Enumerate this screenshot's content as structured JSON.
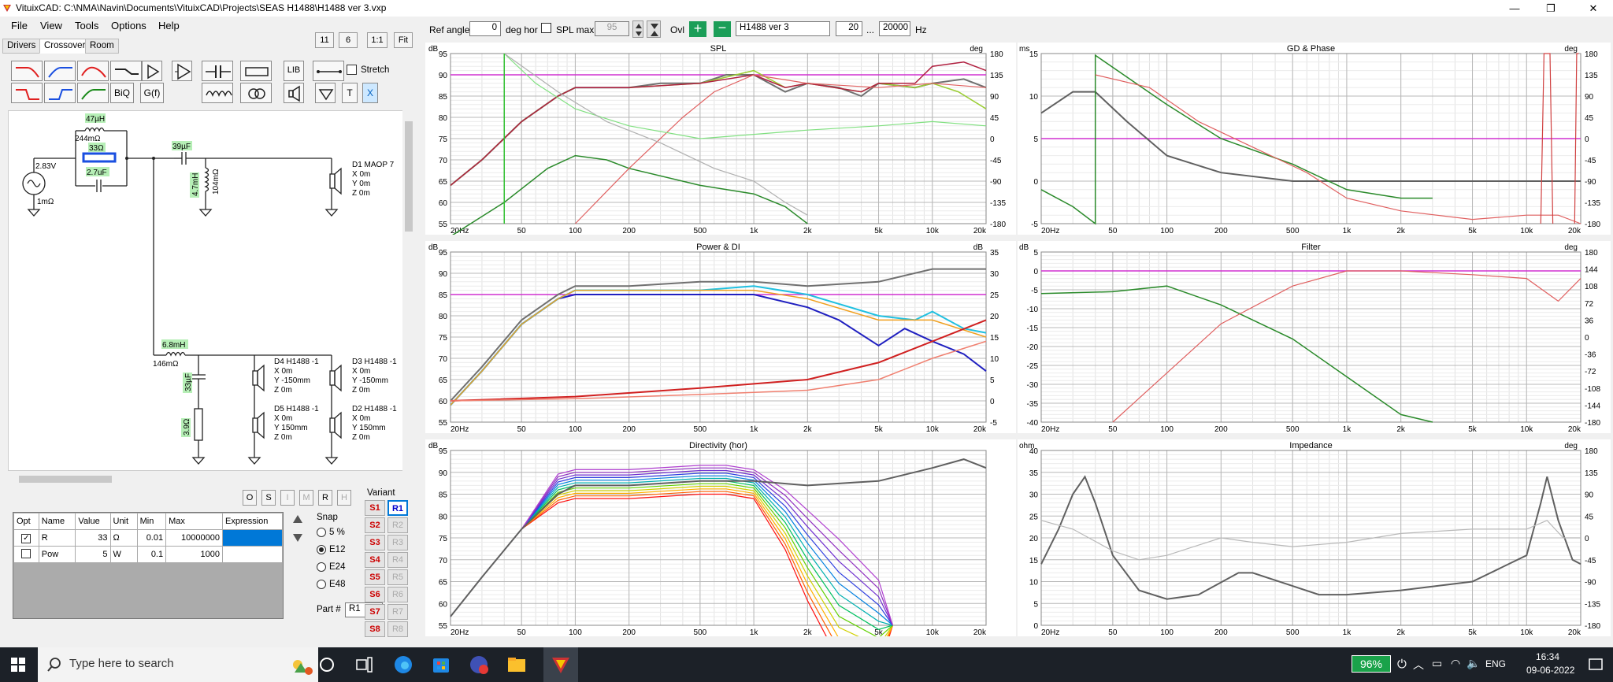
{
  "window": {
    "title": "VituixCAD: C:\\NMA\\Navin\\Documents\\VituixCAD\\Projects\\SEAS H1488\\H1488 ver 3.vxp"
  },
  "menu": [
    "File",
    "View",
    "Tools",
    "Options",
    "Help"
  ],
  "tabs": [
    "Drivers",
    "Crossover",
    "Room"
  ],
  "zoom": {
    "a": "11",
    "b": "6",
    "ratio": "1:1",
    "fit": "Fit"
  },
  "toolbar": {
    "lib": "LIB",
    "biq": "BiQ",
    "gf": "G(f)",
    "stretch": "Stretch",
    "t": "T",
    "x": "X"
  },
  "schematic": {
    "source_v": "2.83V",
    "source_r": "1mΩ",
    "l1": "47µH",
    "l1r": "244mΩ",
    "r1": "33Ω",
    "c1": "2.7uF",
    "c2": "39µF",
    "l2": "4.7mH",
    "l2r": "104mΩ",
    "l3": "6.8mH",
    "l3r": "146mΩ",
    "c3": "33µF",
    "r2": "3.9Ω",
    "d1": {
      "name": "D1 MAOP 7",
      "x": "X 0m",
      "y": "Y 0m",
      "z": "Z 0m"
    },
    "d4": {
      "name": "D4 H1488 -1",
      "x": "X 0m",
      "y": "Y -150mm",
      "z": "Z 0m"
    },
    "d3": {
      "name": "D3 H1488 -1",
      "x": "X 0m",
      "y": "Y -150mm",
      "z": "Z 0m"
    },
    "d5": {
      "name": "D5 H1488 -1",
      "x": "X 0m",
      "y": "Y 150mm",
      "z": "Z 0m"
    },
    "d2": {
      "name": "D2 H1488 -1",
      "x": "X 0m",
      "y": "Y 150mm",
      "z": "Z 0m"
    }
  },
  "ops": [
    "O",
    "S",
    "I",
    "M",
    "R",
    "H"
  ],
  "params": {
    "headers": [
      "Opt",
      "Name",
      "Value",
      "Unit",
      "Min",
      "Max",
      "Expression"
    ],
    "rows": [
      {
        "checked": true,
        "name": "R",
        "value": "33",
        "unit": "Ω",
        "min": "0.01",
        "max": "10000000",
        "expr": ""
      },
      {
        "checked": false,
        "name": "Pow",
        "value": "5",
        "unit": "W",
        "min": "0.1",
        "max": "1000",
        "expr": ""
      }
    ]
  },
  "snap": {
    "label": "Snap",
    "options": [
      "5 %",
      "E12",
      "E24",
      "E48"
    ],
    "selected": "E12"
  },
  "variant": {
    "label": "Variant",
    "s": [
      "S1",
      "S2",
      "S3",
      "S4",
      "S5",
      "S6",
      "S7",
      "S8"
    ],
    "r": [
      "R1",
      "R2",
      "R3",
      "R4",
      "R5",
      "R6",
      "R7",
      "R8"
    ],
    "active": "R1"
  },
  "part": {
    "label": "Part #",
    "value": "R1"
  },
  "controls": {
    "ref_angle_label": "Ref angle",
    "ref_angle": "0",
    "deg_hor": "deg hor",
    "spl_max_label": "SPL max",
    "spl_max": "95",
    "ovl": "Ovl",
    "variant_name": "H1488 ver 3",
    "f_min": "20",
    "dots": "...",
    "f_max": "20000",
    "hz": "Hz"
  },
  "charts": {
    "freq_ticks": [
      "20Hz",
      "50",
      "100",
      "200",
      "500",
      "1k",
      "2k",
      "5k",
      "10k",
      "20k"
    ],
    "spl": {
      "title": "SPL",
      "yunit": "dB",
      "y2unit": "deg",
      "yticks": [
        "95",
        "90",
        "85",
        "80",
        "75",
        "70",
        "65",
        "60",
        "55"
      ],
      "y2ticks": [
        "180",
        "135",
        "90",
        "45",
        "0",
        "-45",
        "-90",
        "-135",
        "-180"
      ]
    },
    "gd": {
      "title": "GD & Phase",
      "yunit": "ms",
      "y2unit": "deg",
      "yticks": [
        "15",
        "10",
        "5",
        "0",
        "-5"
      ],
      "y2ticks": [
        "180",
        "135",
        "90",
        "45",
        "0",
        "-45",
        "-90",
        "-135",
        "-180"
      ]
    },
    "power": {
      "title": "Power & DI",
      "yunit": "dB",
      "y2unit": "dB",
      "yticks": [
        "95",
        "90",
        "85",
        "80",
        "75",
        "70",
        "65",
        "60",
        "55"
      ],
      "y2ticks": [
        "35",
        "30",
        "25",
        "20",
        "15",
        "10",
        "5",
        "0",
        "-5"
      ]
    },
    "filter": {
      "title": "Filter",
      "yunit": "dB",
      "y2unit": "deg",
      "yticks": [
        "5",
        "0",
        "-5",
        "-10",
        "-15",
        "-20",
        "-25",
        "-30",
        "-35",
        "-40"
      ],
      "y2ticks": [
        "180",
        "144",
        "108",
        "72",
        "36",
        "0",
        "-36",
        "-72",
        "-108",
        "-144",
        "-180"
      ]
    },
    "directivity": {
      "title": "Directivity (hor)",
      "yunit": "dB",
      "yticks": [
        "95",
        "90",
        "85",
        "80",
        "75",
        "70",
        "65",
        "60",
        "55"
      ]
    },
    "impedance": {
      "title": "Impedance",
      "yunit": "ohm",
      "y2unit": "deg",
      "yticks": [
        "40",
        "35",
        "30",
        "25",
        "20",
        "15",
        "10",
        "5",
        "0"
      ],
      "y2ticks": [
        "180",
        "135",
        "90",
        "45",
        "0",
        "-45",
        "-90",
        "-135",
        "-180"
      ]
    }
  },
  "taskbar": {
    "search": "Type here to search",
    "battery": "96%",
    "lang": "ENG",
    "time": "16:34",
    "date": "09-06-2022"
  }
}
